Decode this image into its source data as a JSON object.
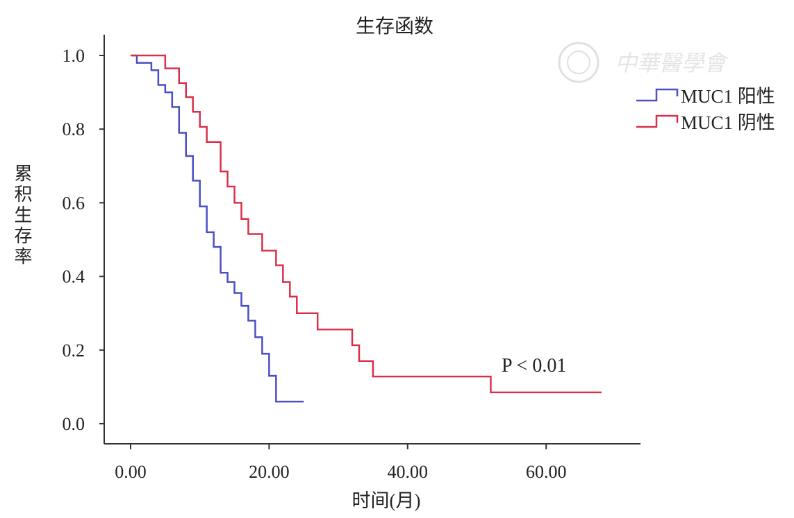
{
  "chart_data": {
    "type": "line",
    "subtype": "kaplan-meier step",
    "title": "生存函数",
    "xlabel": "时间(月)",
    "ylabel": "累积生存率",
    "xlim": [
      -4,
      74
    ],
    "ylim": [
      -0.05,
      1.06
    ],
    "xticks": [
      0,
      20,
      40,
      60
    ],
    "xtick_labels": [
      "0.00",
      "20.00",
      "40.00",
      "60.00"
    ],
    "yticks": [
      0,
      0.2,
      0.4,
      0.6,
      0.8,
      1.0
    ],
    "ytick_labels": [
      "0.0",
      "0.2",
      "0.4",
      "0.6",
      "0.8",
      "1.0"
    ],
    "grid": false,
    "legend_position": "top-right",
    "annotation": "P < 0.01",
    "series": [
      {
        "name": "MUC1 阳性",
        "color": "#4a4fc4",
        "steps": [
          [
            0.2,
            1.0
          ],
          [
            0.9,
            0.98
          ],
          [
            3,
            0.96
          ],
          [
            4,
            0.92
          ],
          [
            5,
            0.9
          ],
          [
            6,
            0.86
          ],
          [
            7,
            0.79
          ],
          [
            8,
            0.727
          ],
          [
            9,
            0.66
          ],
          [
            10,
            0.59
          ],
          [
            11,
            0.52
          ],
          [
            12,
            0.48
          ],
          [
            13,
            0.41
          ],
          [
            14,
            0.385
          ],
          [
            15,
            0.355
          ],
          [
            16,
            0.32
          ],
          [
            17,
            0.28
          ],
          [
            18,
            0.235
          ],
          [
            19,
            0.19
          ],
          [
            20,
            0.13
          ],
          [
            21,
            0.06
          ]
        ],
        "end_x": 25
      },
      {
        "name": "MUC1 阴性",
        "color": "#d9304a",
        "steps": [
          [
            0,
            1.0
          ],
          [
            5,
            0.965
          ],
          [
            7,
            0.925
          ],
          [
            8,
            0.887
          ],
          [
            9,
            0.847
          ],
          [
            10,
            0.806
          ],
          [
            11,
            0.765
          ],
          [
            13,
            0.685
          ],
          [
            14,
            0.644
          ],
          [
            15,
            0.6
          ],
          [
            16,
            0.556
          ],
          [
            17,
            0.515
          ],
          [
            19,
            0.47
          ],
          [
            21,
            0.43
          ],
          [
            22,
            0.385
          ],
          [
            23,
            0.345
          ],
          [
            24,
            0.3
          ],
          [
            27,
            0.256
          ],
          [
            32,
            0.213
          ],
          [
            33,
            0.17
          ],
          [
            35,
            0.128
          ],
          [
            52,
            0.085
          ]
        ],
        "end_x": 68
      }
    ]
  },
  "watermark": "中華醫學會"
}
